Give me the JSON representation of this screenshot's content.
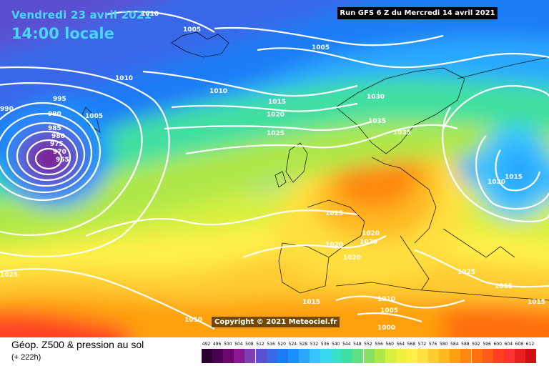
{
  "header": {
    "date": "Vendredi 23 avril 2021",
    "local_time": "14:00 locale",
    "run": "Run GFS 6 Z du Mercredi 14 avril 2021"
  },
  "copyright": "Copyright © 2021 Meteociel.fr",
  "legend": {
    "title": "Géop. Z500 & pression au sol",
    "subtitle": "(+ 222h)",
    "scale": [
      "492",
      "496",
      "500",
      "504",
      "508",
      "512",
      "516",
      "520",
      "524",
      "528",
      "532",
      "536",
      "540",
      "544",
      "548",
      "552",
      "556",
      "560",
      "564",
      "568",
      "572",
      "576",
      "580",
      "584",
      "588",
      "592",
      "596",
      "600",
      "604",
      "608",
      "612"
    ],
    "colors": [
      "#2a0030",
      "#4a0050",
      "#6a0870",
      "#8a1890",
      "#7e3fb0",
      "#5a50d0",
      "#3868e8",
      "#1a7cf5",
      "#1890ff",
      "#2aa8ff",
      "#3ac4ff",
      "#3ad8f0",
      "#38e0c8",
      "#40e0a0",
      "#60e080",
      "#8ae060",
      "#b0e848",
      "#d6f040",
      "#f0f040",
      "#fff048",
      "#ffe040",
      "#ffcc30",
      "#ffb820",
      "#ffa010",
      "#ff8810",
      "#ff7010",
      "#ff5a18",
      "#ff4020",
      "#ff3030",
      "#e82020",
      "#d01010"
    ]
  },
  "pressure_labels": [
    "1010",
    "1005",
    "1005",
    "1010",
    "1010",
    "995",
    "990",
    "990",
    "985",
    "980",
    "975",
    "970",
    "965",
    "1005",
    "1015",
    "1020",
    "1025",
    "1030",
    "1035",
    "1035",
    "1025",
    "1020",
    "1020",
    "1020",
    "1020",
    "1015",
    "1020",
    "1025",
    "1015",
    "1015",
    "1010",
    "1005",
    "1000",
    "1015",
    "1025",
    "1010"
  ]
}
